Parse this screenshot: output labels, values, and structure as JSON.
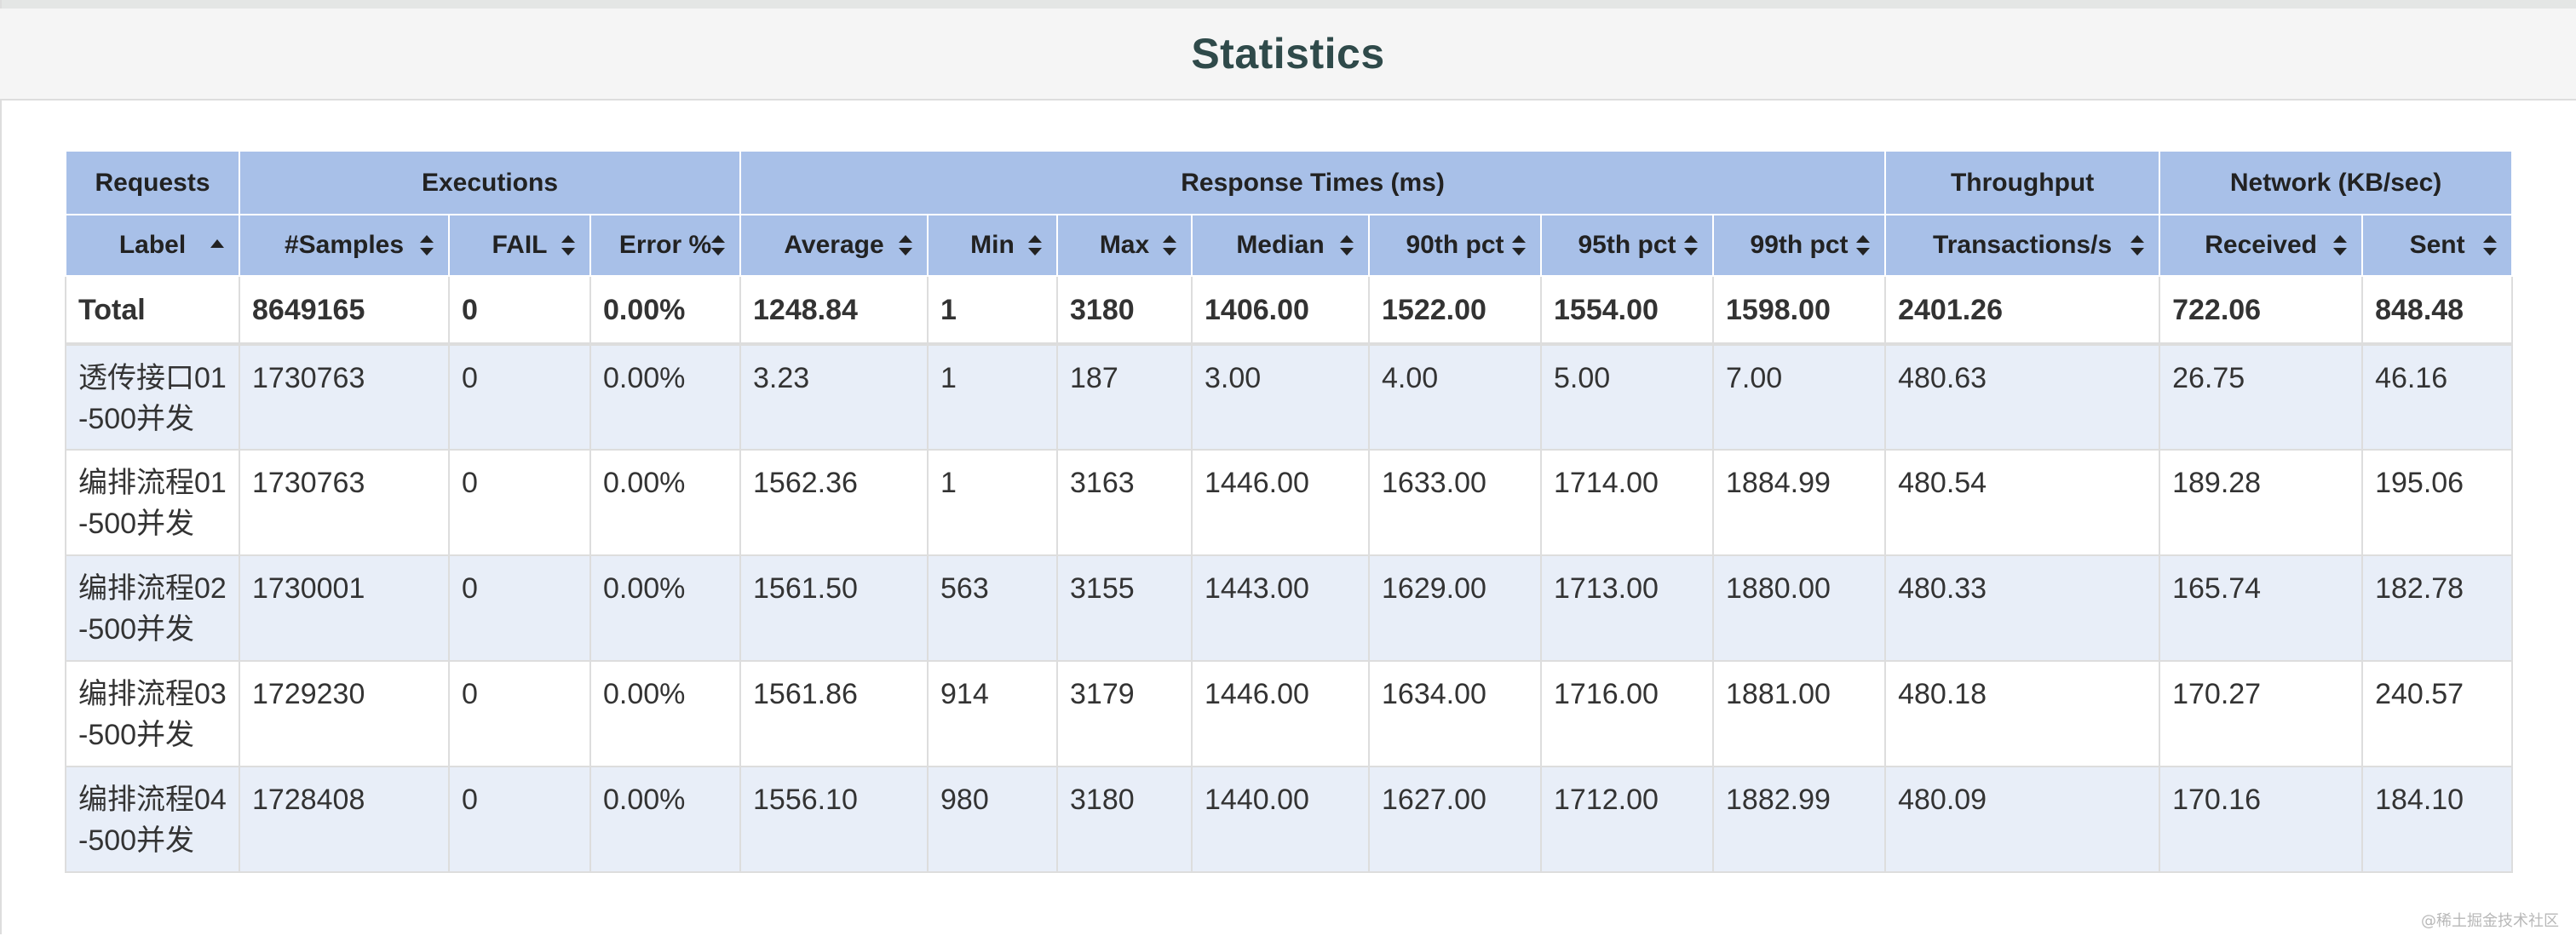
{
  "page": {
    "title": "Statistics",
    "watermark": "@稀土掘金技术社区"
  },
  "table": {
    "groups": [
      {
        "label": "Requests"
      },
      {
        "label": "Executions"
      },
      {
        "label": "Response Times (ms)"
      },
      {
        "label": "Throughput"
      },
      {
        "label": "Network (KB/sec)"
      }
    ],
    "columns": [
      {
        "label": "Label",
        "sort": "ascending"
      },
      {
        "label": "#Samples",
        "sort": "both"
      },
      {
        "label": "FAIL",
        "sort": "both"
      },
      {
        "label": "Error %",
        "sort": "both"
      },
      {
        "label": "Average",
        "sort": "both"
      },
      {
        "label": "Min",
        "sort": "both"
      },
      {
        "label": "Max",
        "sort": "both"
      },
      {
        "label": "Median",
        "sort": "both"
      },
      {
        "label": "90th pct",
        "sort": "both"
      },
      {
        "label": "95th pct",
        "sort": "both"
      },
      {
        "label": "99th pct",
        "sort": "both"
      },
      {
        "label": "Transactions/s",
        "sort": "both"
      },
      {
        "label": "Received",
        "sort": "both"
      },
      {
        "label": "Sent",
        "sort": "both"
      }
    ],
    "total": [
      "Total",
      "8649165",
      "0",
      "0.00%",
      "1248.84",
      "1",
      "3180",
      "1406.00",
      "1522.00",
      "1554.00",
      "1598.00",
      "2401.26",
      "722.06",
      "848.48"
    ],
    "rows": [
      [
        "透传接口01-500并发",
        "1730763",
        "0",
        "0.00%",
        "3.23",
        "1",
        "187",
        "3.00",
        "4.00",
        "5.00",
        "7.00",
        "480.63",
        "26.75",
        "46.16"
      ],
      [
        "编排流程01-500并发",
        "1730763",
        "0",
        "0.00%",
        "1562.36",
        "1",
        "3163",
        "1446.00",
        "1633.00",
        "1714.00",
        "1884.99",
        "480.54",
        "189.28",
        "195.06"
      ],
      [
        "编排流程02-500并发",
        "1730001",
        "0",
        "0.00%",
        "1561.50",
        "563",
        "3155",
        "1443.00",
        "1629.00",
        "1713.00",
        "1880.00",
        "480.33",
        "165.74",
        "182.78"
      ],
      [
        "编排流程03-500并发",
        "1729230",
        "0",
        "0.00%",
        "1561.86",
        "914",
        "3179",
        "1446.00",
        "1634.00",
        "1716.00",
        "1881.00",
        "480.18",
        "170.27",
        "240.57"
      ],
      [
        "编排流程04-500并发",
        "1728408",
        "0",
        "0.00%",
        "1556.10",
        "980",
        "3180",
        "1440.00",
        "1627.00",
        "1712.00",
        "1882.99",
        "480.09",
        "170.16",
        "184.10"
      ]
    ]
  },
  "colors": {
    "header_bg": "#a8c0e8",
    "row_alt_bg": "#e8eef8",
    "title_color": "#2f4a4a",
    "heading_bg": "#f5f5f5"
  }
}
